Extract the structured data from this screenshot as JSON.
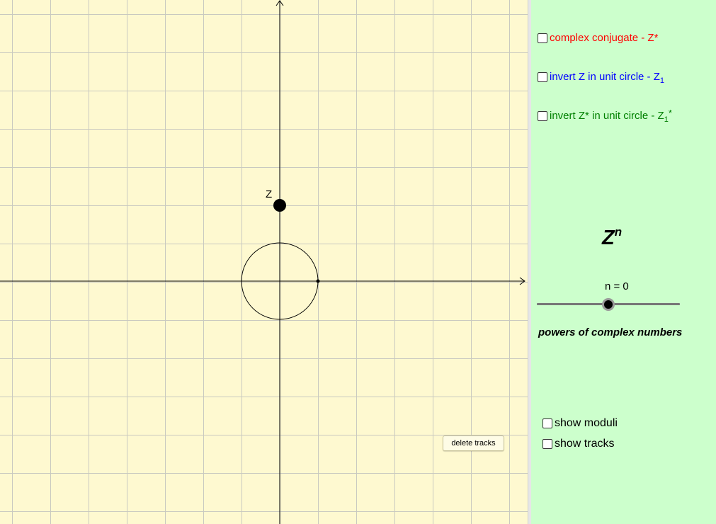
{
  "graphics": {
    "point_label": "Z",
    "point_value": {
      "re": 0,
      "im": 2
    },
    "unit_circle_radius": 1,
    "colors": {
      "background": "#fef9d0",
      "grid": "#c9c9c0",
      "axes": "#000000"
    },
    "delete_button_label": "delete tracks"
  },
  "panel": {
    "background": "#ccffcc",
    "checkboxes": [
      {
        "text": "complex conjugate - Z*",
        "color": "#ff0000",
        "checked": false
      },
      {
        "text": "invert Z in unit circle - Z",
        "sub": "1",
        "color": "#0000ff",
        "checked": false
      },
      {
        "text": "invert Z* in unit circle - Z",
        "sub": "1",
        "sup": "*",
        "color": "#008000",
        "checked": false
      }
    ],
    "title_base": "Z",
    "title_exp": "n",
    "slider": {
      "label": "n = 0",
      "value": 0
    },
    "subtitle": "powers of complex numbers",
    "show_moduli_label": "show moduli",
    "show_moduli_checked": false,
    "show_tracks_label": "show tracks",
    "show_tracks_checked": false
  }
}
